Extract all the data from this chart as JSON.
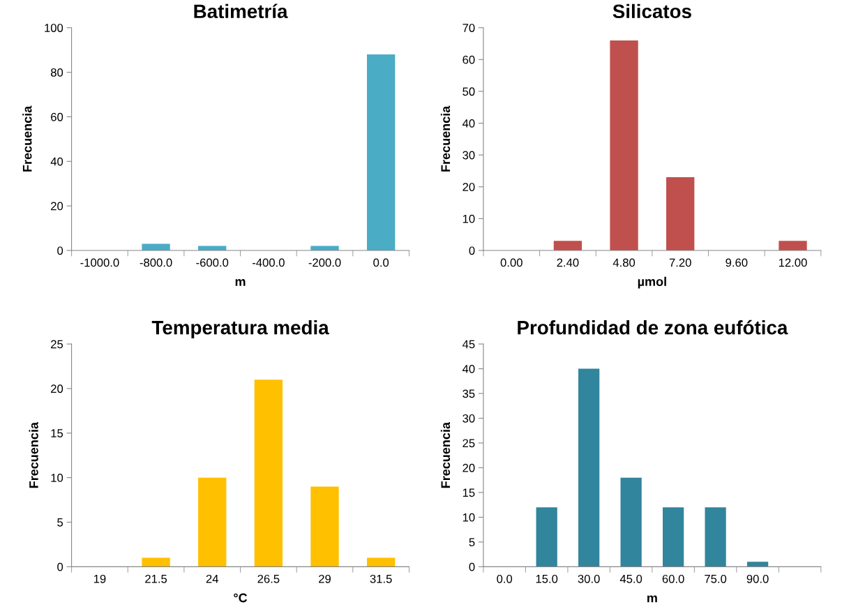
{
  "chart_data": [
    {
      "type": "bar",
      "title": "Batimetría",
      "xlabel": "m",
      "ylabel": "Frecuencia",
      "categories": [
        "-1000.0",
        "-800.0",
        "-600.0",
        "-400.0",
        "-200.0",
        "0.0"
      ],
      "values": [
        0,
        3,
        2,
        0,
        2,
        88
      ],
      "color": "#4bacc6",
      "ylim": [
        0,
        100
      ],
      "yticks": [
        0,
        20,
        40,
        60,
        80,
        100
      ],
      "grid": false,
      "legend": false
    },
    {
      "type": "bar",
      "title": "Silicatos",
      "xlabel": "µmol",
      "ylabel": "Frecuencia",
      "categories": [
        "0.00",
        "2.40",
        "4.80",
        "7.20",
        "9.60",
        "12.00"
      ],
      "values": [
        0,
        3,
        66,
        23,
        0,
        3
      ],
      "color": "#c0504d",
      "ylim": [
        0,
        70
      ],
      "yticks": [
        0,
        10,
        20,
        30,
        40,
        50,
        60,
        70
      ],
      "grid": false,
      "legend": false
    },
    {
      "type": "bar",
      "title": "Temperatura media",
      "xlabel": "°C",
      "ylabel": "Frecuencia",
      "categories": [
        "19",
        "21.5",
        "24",
        "26.5",
        "29",
        "31.5"
      ],
      "values": [
        0,
        1,
        10,
        21,
        9,
        1
      ],
      "color": "#ffc000",
      "ylim": [
        0,
        25
      ],
      "yticks": [
        0,
        5,
        10,
        15,
        20,
        25
      ],
      "grid": false,
      "legend": false
    },
    {
      "type": "bar",
      "title": "Profundidad de zona eufótica",
      "xlabel": "m",
      "ylabel": "Frecuencia",
      "categories": [
        "0.0",
        "15.0",
        "30.0",
        "45.0",
        "60.0",
        "75.0",
        "90.0",
        null
      ],
      "values": [
        0,
        12,
        40,
        18,
        12,
        12,
        1,
        0
      ],
      "color": "#31859c",
      "ylim": [
        0,
        45
      ],
      "yticks": [
        0,
        5,
        10,
        15,
        20,
        25,
        30,
        35,
        40,
        45
      ],
      "grid": false,
      "legend": false
    }
  ]
}
